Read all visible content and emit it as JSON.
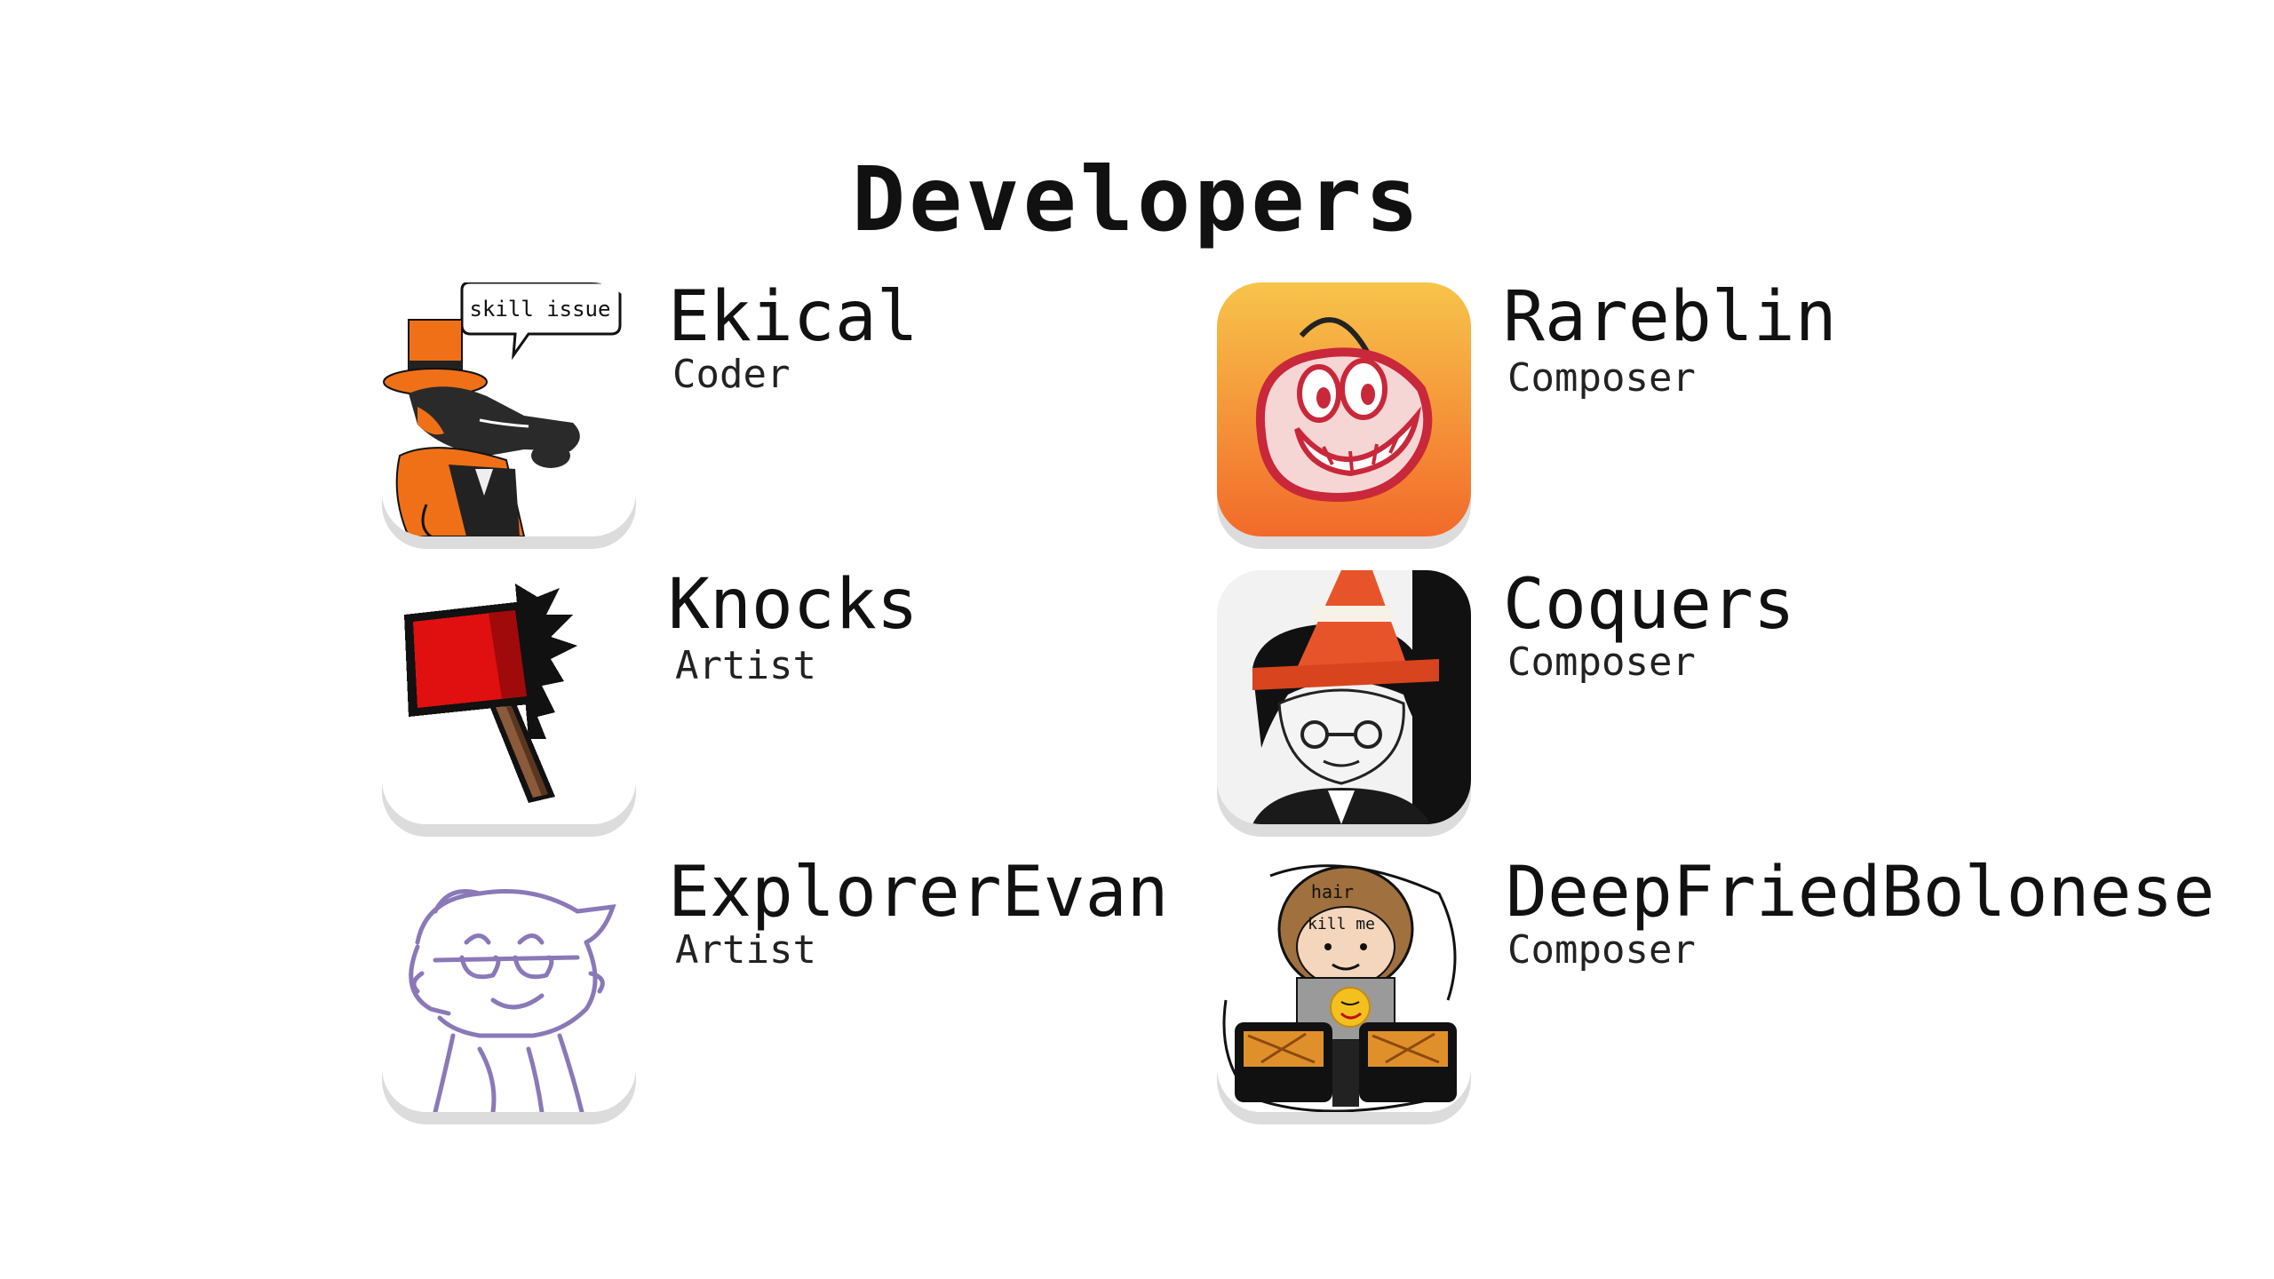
{
  "page": {
    "title": "Developers"
  },
  "developers": [
    {
      "name": "Ekical",
      "role": "Coder",
      "avatar_icon": "orange-fox-top-hat-icon",
      "speech_bubble": "skill issue"
    },
    {
      "name": "Rareblin",
      "role": "Composer",
      "avatar_icon": "grinning-mouth-logo-icon"
    },
    {
      "name": "Knocks",
      "role": "Artist",
      "avatar_icon": "red-axe-icon"
    },
    {
      "name": "Coquers",
      "role": "Composer",
      "avatar_icon": "traffic-cone-character-icon"
    },
    {
      "name": "ExplorerEvan",
      "role": "Artist",
      "avatar_icon": "purple-sketch-character-icon"
    },
    {
      "name": "DeepFriedBolonese",
      "role": "Composer",
      "avatar_icon": "air-fryer-character-icon",
      "sign_text": "kill me",
      "hair_text": "hair"
    }
  ],
  "colors": {
    "background": "#ffffff",
    "text": "#111111",
    "rareblin_gradient_top": "#f7c44a",
    "rareblin_gradient_bottom": "#f26a2a",
    "axe_red": "#e01010",
    "cone_orange": "#e8542a",
    "sketch_purple": "#8a78b8"
  }
}
